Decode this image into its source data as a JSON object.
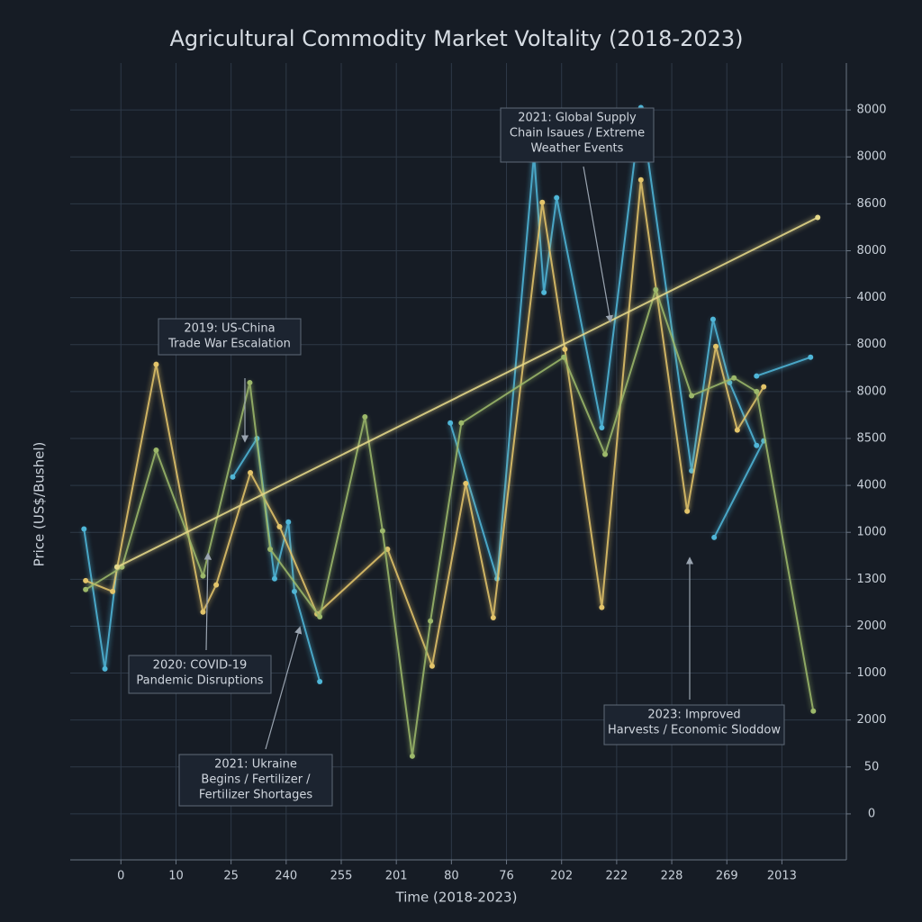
{
  "chart_data": {
    "type": "line",
    "title": "Agricultural Commodity Market Voltality (2018-2023)",
    "x_label": "Time (2018-2023)",
    "y_label": "Price (US$/Bushel)",
    "xlim": [
      -0.92,
      13.17
    ],
    "ylim": [
      -0.98,
      16.0
    ],
    "xticks": [
      {
        "value": 0,
        "label": "0"
      },
      {
        "value": 1,
        "label": "10"
      },
      {
        "value": 2,
        "label": "25"
      },
      {
        "value": 3,
        "label": "240"
      },
      {
        "value": 4,
        "label": "255"
      },
      {
        "value": 5,
        "label": "201"
      },
      {
        "value": 6,
        "label": "80"
      },
      {
        "value": 7,
        "label": "76"
      },
      {
        "value": 8,
        "label": "202"
      },
      {
        "value": 9,
        "label": "222"
      },
      {
        "value": 10,
        "label": "228"
      },
      {
        "value": 11,
        "label": "269"
      },
      {
        "value": 12,
        "label": "2013"
      }
    ],
    "yticks": [
      {
        "value": 0,
        "label": "0"
      },
      {
        "value": 1,
        "label": "50"
      },
      {
        "value": 2,
        "label": "2000"
      },
      {
        "value": 3,
        "label": "1000"
      },
      {
        "value": 4,
        "label": "2000"
      },
      {
        "value": 5,
        "label": "1300"
      },
      {
        "value": 6,
        "label": "1000"
      },
      {
        "value": 7,
        "label": "4000"
      },
      {
        "value": 8,
        "label": "8500"
      },
      {
        "value": 9,
        "label": "8000"
      },
      {
        "value": 10,
        "label": "8000"
      },
      {
        "value": 11,
        "label": "4000"
      },
      {
        "value": 12,
        "label": "8000"
      },
      {
        "value": 13,
        "label": "8600"
      },
      {
        "value": 14,
        "label": "8000"
      },
      {
        "value": 15,
        "label": "8000"
      }
    ],
    "grid": true,
    "series": [
      {
        "color": "#4fb6d8",
        "x": [
          -0.67,
          -0.29,
          -0.07,
          null,
          2.03,
          2.47,
          2.79,
          3.04,
          3.15,
          3.61,
          null,
          5.98,
          6.83,
          7.5,
          7.68,
          7.91,
          8.73,
          9.44,
          10.36,
          10.75,
          11.05,
          11.54,
          null,
          10.77,
          11.67,
          null,
          11.54,
          12.52
        ],
        "values": [
          6.07,
          3.09,
          5.26,
          null,
          7.18,
          8.0,
          5.01,
          6.22,
          4.74,
          2.82,
          null,
          8.33,
          5.01,
          14.05,
          11.11,
          13.13,
          8.23,
          15.05,
          7.31,
          10.54,
          9.19,
          7.85,
          null,
          5.89,
          7.95,
          null,
          9.33,
          9.73
        ]
      },
      {
        "color": "#e3c46a",
        "x": [
          -0.64,
          -0.15,
          0.64,
          1.49,
          1.73,
          2.35,
          2.88,
          3.56,
          4.84,
          5.65,
          6.26,
          6.76,
          7.65,
          8.06,
          8.73,
          9.44,
          10.28,
          10.8,
          11.19,
          11.67
        ],
        "values": [
          4.97,
          4.74,
          9.58,
          4.3,
          4.88,
          7.27,
          6.12,
          4.26,
          5.64,
          3.15,
          7.04,
          4.18,
          13.03,
          9.9,
          4.4,
          13.51,
          6.45,
          9.96,
          8.18,
          9.1
        ]
      },
      {
        "color": "#9cb86a",
        "x": [
          -0.64,
          0.02,
          0.64,
          1.49,
          2.34,
          2.71,
          3.61,
          4.43,
          4.75,
          5.29,
          5.62,
          6.18,
          8.04,
          8.79,
          9.71,
          10.36,
          11.13,
          11.54,
          12.57
        ],
        "values": [
          4.78,
          5.26,
          7.75,
          5.07,
          9.19,
          5.64,
          4.2,
          8.46,
          6.03,
          1.23,
          4.11,
          8.33,
          9.73,
          7.66,
          11.17,
          8.91,
          9.29,
          9.0,
          2.19
        ]
      },
      {
        "color": "#e6d98a",
        "x": [
          -0.07,
          12.65
        ],
        "values": [
          5.26,
          12.71
        ]
      }
    ],
    "annotations": [
      {
        "lines": [
          "2019: US-China",
          "Trade War Escalation"
        ]
      },
      {
        "lines": [
          "2020: COVID-19",
          "Pandemic Disruptions"
        ]
      },
      {
        "lines": [
          "2021: Ukraine",
          "Begins / Fertilizer /",
          "Fertilizer Shortages"
        ]
      },
      {
        "lines": [
          "2021: Global Supply",
          "Chain Isaues / Extreme",
          "Weather Events"
        ]
      },
      {
        "lines": [
          "2023: Improved",
          "Harvests / Economic Sloddow"
        ]
      }
    ]
  }
}
